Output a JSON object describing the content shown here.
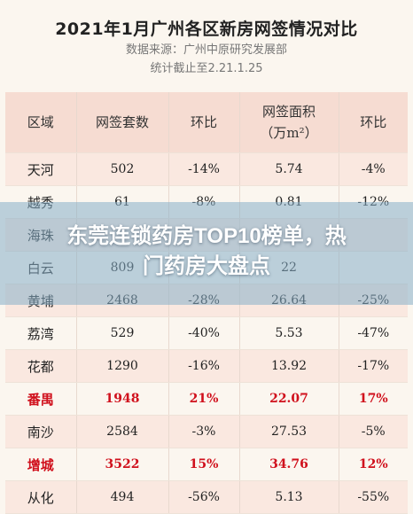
{
  "header": {
    "title": "2021年1月广州各区新房网签情况对比",
    "source": "数据来源：广州中原研究发展部",
    "cutoff": "统计截止至2.21.1.25"
  },
  "table": {
    "columns": [
      "区域",
      "网签套数",
      "环比",
      "网签面积\n（万m²）",
      "环比"
    ],
    "rows": [
      {
        "district": "天河",
        "units": "502",
        "units_mom": "-14%",
        "area": "5.74",
        "area_mom": "-4%",
        "highlight": false
      },
      {
        "district": "越秀",
        "units": "61",
        "units_mom": "-8%",
        "area": "0.81",
        "area_mom": "-12%",
        "highlight": false
      },
      {
        "district": "海珠",
        "units": "",
        "units_mom": "",
        "area": "",
        "area_mom": "",
        "highlight": false
      },
      {
        "district": "白云",
        "units": "809",
        "units_mom": "",
        "area": "22",
        "area_mom": "",
        "highlight": false
      },
      {
        "district": "黄埔",
        "units": "2468",
        "units_mom": "-28%",
        "area": "26.64",
        "area_mom": "-25%",
        "highlight": false
      },
      {
        "district": "荔湾",
        "units": "529",
        "units_mom": "-40%",
        "area": "5.53",
        "area_mom": "-47%",
        "highlight": false
      },
      {
        "district": "花都",
        "units": "1290",
        "units_mom": "-16%",
        "area": "13.92",
        "area_mom": "-17%",
        "highlight": false
      },
      {
        "district": "番禺",
        "units": "1948",
        "units_mom": "21%",
        "area": "22.07",
        "area_mom": "17%",
        "highlight": true
      },
      {
        "district": "南沙",
        "units": "2584",
        "units_mom": "-3%",
        "area": "27.53",
        "area_mom": "-5%",
        "highlight": false
      },
      {
        "district": "增城",
        "units": "3522",
        "units_mom": "15%",
        "area": "34.76",
        "area_mom": "12%",
        "highlight": true
      },
      {
        "district": "从化",
        "units": "494",
        "units_mom": "-56%",
        "area": "5.13",
        "area_mom": "-55%",
        "highlight": false
      }
    ]
  },
  "banner": {
    "line1": "东莞连锁药房TOP10榜单，热",
    "line2": "门药房大盘点"
  }
}
